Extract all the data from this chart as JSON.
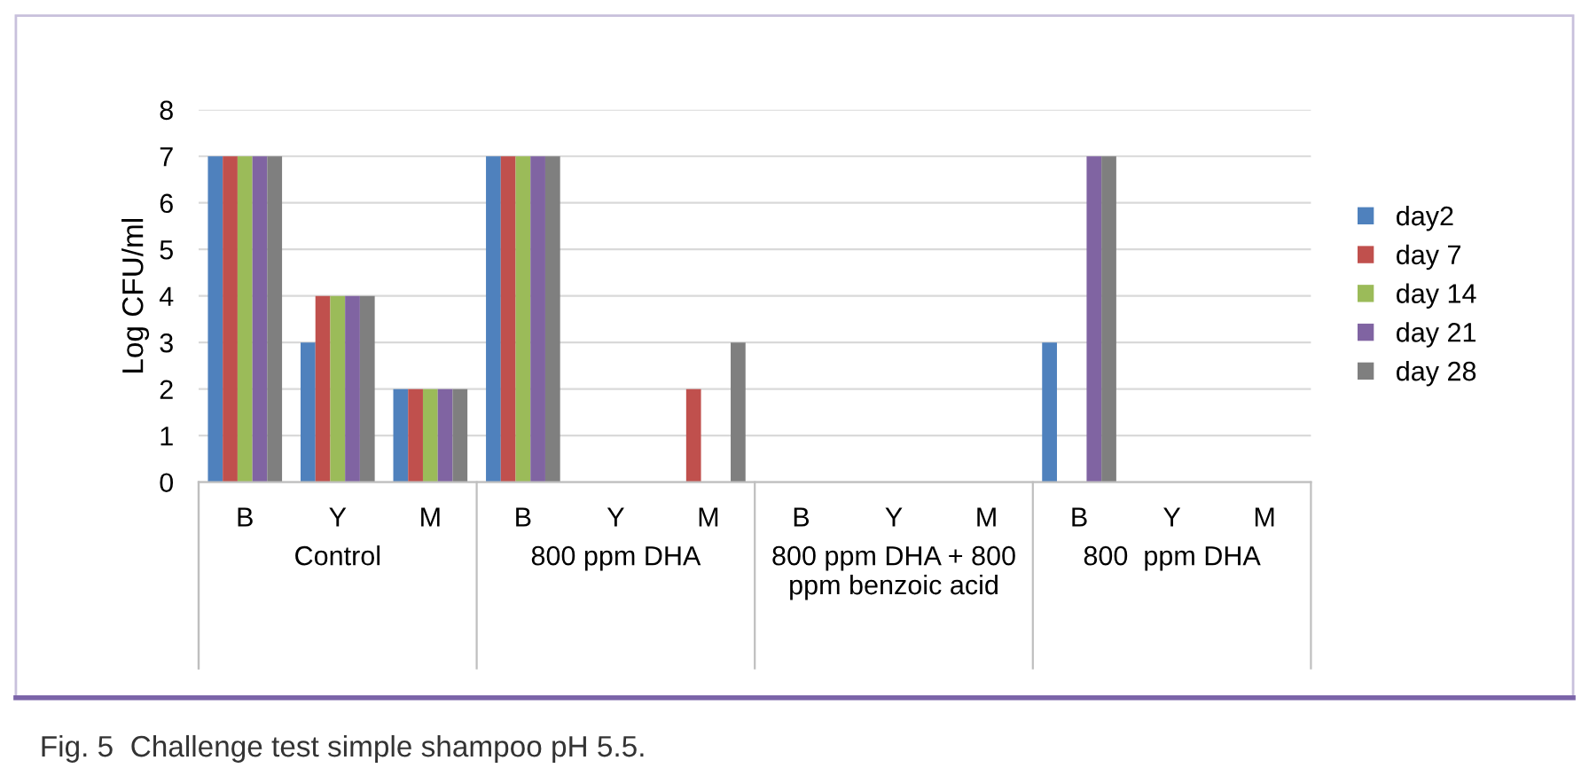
{
  "chart_data": {
    "type": "bar",
    "ylabel": "Log CFU/ml",
    "categories": [
      "B",
      "Y",
      "M",
      "B",
      "Y",
      "M",
      "B",
      "Y",
      "M",
      "B",
      "Y",
      "M"
    ],
    "series": [
      {
        "name": "day2",
        "color": "#4f81bd",
        "values": [
          7,
          3,
          2,
          7,
          0,
          0,
          0,
          0,
          0,
          3,
          0,
          0
        ]
      },
      {
        "name": "day 7",
        "color": "#c0504d",
        "values": [
          7,
          4,
          2,
          7,
          0,
          2,
          0,
          0,
          0,
          0,
          0,
          0
        ]
      },
      {
        "name": "day 14",
        "color": "#9bbb59",
        "values": [
          7,
          4,
          2,
          7,
          0,
          0,
          0,
          0,
          0,
          0,
          0,
          0
        ]
      },
      {
        "name": "day 21",
        "color": "#8064a2",
        "values": [
          7,
          4,
          2,
          7,
          0,
          0,
          0,
          0,
          0,
          7,
          0,
          0
        ]
      },
      {
        "name": "day 28",
        "color": "#7f7f7f",
        "values": [
          7,
          4,
          2,
          7,
          0,
          3,
          0,
          0,
          0,
          7,
          0,
          0
        ]
      }
    ],
    "ylim": [
      0,
      8
    ],
    "yticks": [
      0,
      1,
      2,
      3,
      4,
      5,
      6,
      7,
      8
    ],
    "grid": "y",
    "legend": "right",
    "annotations": [
      "Control",
      "800 ppm DHA",
      "800 ppm DHA + 800 ppm benzoic acid",
      "800  ppm DHA",
      "Fig. 5  Challenge test simple shampoo pH 5.5."
    ]
  }
}
